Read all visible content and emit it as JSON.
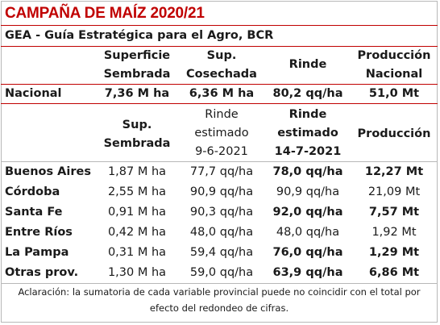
{
  "title": "CAMPAÑA DE MAÍZ 2020/21",
  "subtitle": "GEA - Guía Estratégica para el Agro, BCR",
  "national_header": {
    "col1": [
      "Superficie",
      "Sembrada"
    ],
    "col2": [
      "Sup.",
      "Cosechada"
    ],
    "col3": [
      "Rinde"
    ],
    "col4": [
      "Producción",
      "Nacional"
    ]
  },
  "national_row": {
    "label": "Nacional",
    "superficie": "7,36 M ha",
    "cosechada": "6,36 M ha",
    "rinde": "80,2 qq/ha",
    "produccion": "51,0 Mt"
  },
  "province_header": {
    "col1": [
      "Sup.",
      "Sembrada"
    ],
    "col2": [
      "Rinde",
      "estimado",
      "9-6-2021"
    ],
    "col3": [
      "Rinde",
      "estimado",
      "14-7-2021"
    ],
    "col4": [
      "Producción"
    ]
  },
  "provinces": [
    {
      "name": "Buenos Aires",
      "sup": "1,87 M ha",
      "r1": "77,7 qq/ha",
      "r2": "78,0 qq/ha",
      "prod": "12,27 Mt",
      "r2_bold": true,
      "prod_bold": true
    },
    {
      "name": "Córdoba",
      "sup": "2,55 M ha",
      "r1": "90,9 qq/ha",
      "r2": "90,9 qq/ha",
      "prod": "21,09 Mt",
      "r2_bold": false,
      "prod_bold": false
    },
    {
      "name": "Santa Fe",
      "sup": "0,91 M ha",
      "r1": "90,3 qq/ha",
      "r2": "92,0 qq/ha",
      "prod": "7,57 Mt",
      "r2_bold": true,
      "prod_bold": true
    },
    {
      "name": "Entre Ríos",
      "sup": "0,42 M ha",
      "r1": "48,0 qq/ha",
      "r2": "48,0 qq/ha",
      "prod": "1,92 Mt",
      "r2_bold": false,
      "prod_bold": false
    },
    {
      "name": "La Pampa",
      "sup": "0,31 M ha",
      "r1": "59,4 qq/ha",
      "r2": "76,0 qq/ha",
      "prod": "1,29 Mt",
      "r2_bold": true,
      "prod_bold": true
    },
    {
      "name": "Otras prov.",
      "sup": "1,30 M ha",
      "r1": "59,0 qq/ha",
      "r2": "63,9 qq/ha",
      "prod": "6,86 Mt",
      "r2_bold": true,
      "prod_bold": true
    }
  ],
  "note": [
    "Aclaración: la sumatoria de cada variable provincial puede no coincidir con el total por",
    "efecto del redondeo de cifras."
  ],
  "colors": {
    "accent": "#c00000",
    "border": "#b8b8b8"
  }
}
